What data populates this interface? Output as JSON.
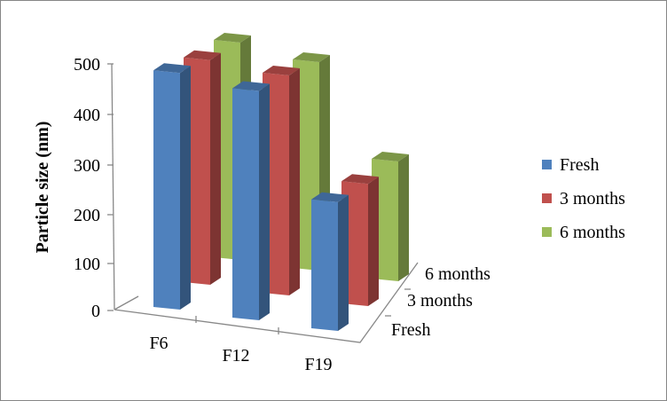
{
  "chart_data": {
    "type": "bar",
    "subtype": "3d-clustered-column",
    "title": "",
    "xlabel": "",
    "ylabel": "Particle size (nm)",
    "ylim": [
      0,
      500
    ],
    "yticks": [
      "0",
      "100",
      "200",
      "300",
      "400",
      "500"
    ],
    "categories": [
      "F6",
      "F12",
      "F19"
    ],
    "depth_labels": [
      "Fresh",
      "3 months",
      "6 months"
    ],
    "series": [
      {
        "name": "Fresh",
        "values": [
          485,
          470,
          264
        ],
        "color": "#4f81bd"
      },
      {
        "name": "3 months",
        "values": [
          487,
          477,
          265
        ],
        "color": "#c0504d"
      },
      {
        "name": "6 months",
        "values": [
          490,
          470,
          270
        ],
        "color": "#9bbb59"
      }
    ],
    "legend_position": "right",
    "grid": false
  }
}
